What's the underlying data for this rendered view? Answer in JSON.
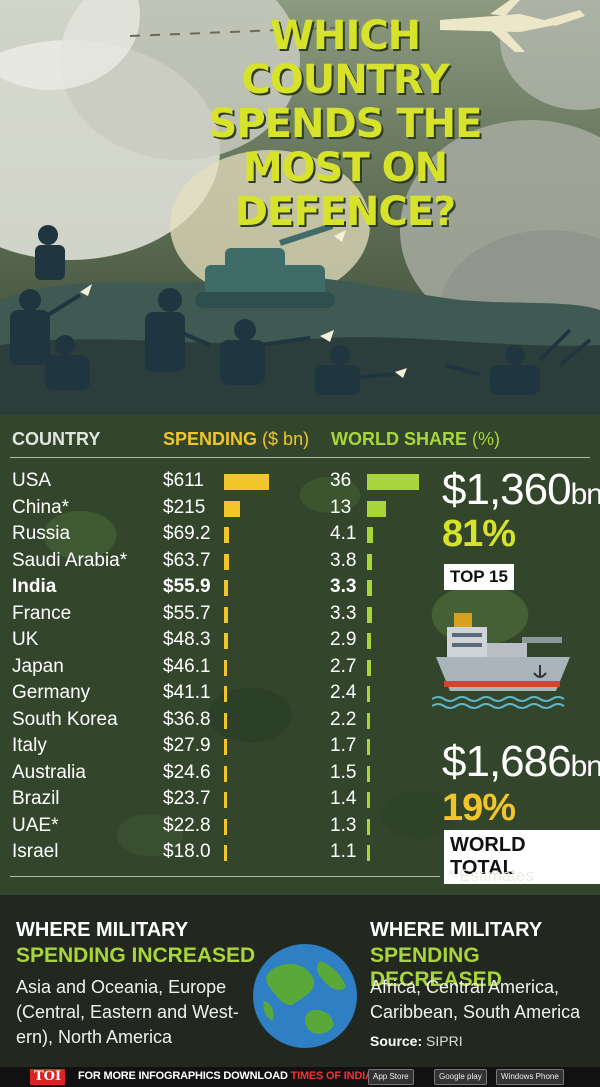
{
  "title": "WHICH COUNTRY SPENDS THE MOST ON DEFENCE?",
  "colors": {
    "title": "#d7e22b",
    "spending_bar": "#f2c52a",
    "share_bar": "#a8d53a"
  },
  "headers": {
    "country": "COUNTRY",
    "spending": "SPENDING",
    "spending_unit": "($ bn)",
    "share": "WORLD SHARE",
    "share_unit": "(%)"
  },
  "rows": [
    {
      "country": "USA",
      "spending": "$611",
      "share": "36"
    },
    {
      "country": "China*",
      "spending": "$215",
      "share": "13"
    },
    {
      "country": "Russia",
      "spending": "$69.2",
      "share": "4.1"
    },
    {
      "country": "Saudi Arabia*",
      "spending": "$63.7",
      "share": "3.8"
    },
    {
      "country": "India",
      "spending": "$55.9",
      "share": "3.3",
      "bold": true
    },
    {
      "country": "France",
      "spending": "$55.7",
      "share": "3.3"
    },
    {
      "country": "UK",
      "spending": "$48.3",
      "share": "2.9"
    },
    {
      "country": "Japan",
      "spending": "$46.1",
      "share": "2.7"
    },
    {
      "country": "Germany",
      "spending": "$41.1",
      "share": "2.4"
    },
    {
      "country": "South Korea",
      "spending": "$36.8",
      "share": "2.2"
    },
    {
      "country": "Italy",
      "spending": "$27.9",
      "share": "1.7"
    },
    {
      "country": "Australia",
      "spending": "$24.6",
      "share": "1.5"
    },
    {
      "country": "Brazil",
      "spending": "$23.7",
      "share": "1.4"
    },
    {
      "country": "UAE*",
      "spending": "$22.8",
      "share": "1.3"
    },
    {
      "country": "Israel",
      "spending": "$18.0",
      "share": "1.1"
    }
  ],
  "chart_data": {
    "type": "bar",
    "categories": [
      "USA",
      "China*",
      "Russia",
      "Saudi Arabia*",
      "India",
      "France",
      "UK",
      "Japan",
      "Germany",
      "South Korea",
      "Italy",
      "Australia",
      "Brazil",
      "UAE*",
      "Israel"
    ],
    "series": [
      {
        "name": "SPENDING ($ bn)",
        "values": [
          611,
          215,
          69.2,
          63.7,
          55.9,
          55.7,
          48.3,
          46.1,
          41.1,
          36.8,
          27.9,
          24.6,
          23.7,
          22.8,
          18.0
        ]
      },
      {
        "name": "WORLD SHARE (%)",
        "values": [
          36,
          13,
          4.1,
          3.8,
          3.3,
          3.3,
          2.9,
          2.7,
          2.4,
          2.2,
          1.7,
          1.5,
          1.4,
          1.3,
          1.1
        ]
      }
    ]
  },
  "top15": {
    "amount": "$1,360",
    "unit": "bn",
    "pct": "81%",
    "label": "TOP 15"
  },
  "world": {
    "amount": "$1,686",
    "unit": "bn",
    "pct": "19%",
    "label": "WORLD TOTAL"
  },
  "note": "* Estimates",
  "increased": {
    "title1": "WHERE MILITARY",
    "title2": "SPENDING INCREASED",
    "lines": [
      "Asia and Oceania, Europe",
      "(Central, Eastern and West-",
      "ern), North America"
    ]
  },
  "decreased": {
    "title1": "WHERE MILITARY",
    "title2": "SPENDING DECREASED",
    "lines": [
      "Africa, Central America,",
      "Caribbean, South America"
    ]
  },
  "source": {
    "label": "Source:",
    "value": "SIPRI"
  },
  "footer": {
    "logo": "TOI",
    "text_a": "FOR MORE  INFOGRAPHICS DOWNLOAD ",
    "text_b": "TIMES OF INDIA  APP",
    "stores": [
      "App Store",
      "Google play",
      "Windows Phone"
    ]
  }
}
